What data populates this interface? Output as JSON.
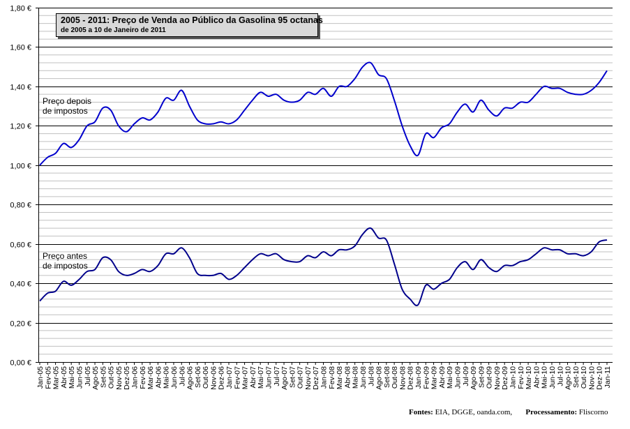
{
  "chart_data": {
    "type": "line",
    "title": "2005 - 2011: Preço de Venda ao Público da Gasolina 95 octanas",
    "subtitle": "de 2005 a 10 de Janeiro de 2011",
    "ylim": [
      0,
      1.8
    ],
    "y_ticks": [
      "0,00 €",
      "0,20 €",
      "0,40 €",
      "0,60 €",
      "0,80 €",
      "1,00 €",
      "1,20 €",
      "1,40 €",
      "1,60 €",
      "1,80 €"
    ],
    "y_tick_values": [
      0,
      0.2,
      0.4,
      0.6,
      0.8,
      1.0,
      1.2,
      1.4,
      1.6,
      1.8
    ],
    "grid": true,
    "x_ticks": [
      "Jan-05",
      "Fev-05",
      "Mar-05",
      "Abr-05",
      "Mai-05",
      "Jun-05",
      "Jul-05",
      "Ago-05",
      "Set-05",
      "Out-05",
      "Nov-05",
      "Dez-05",
      "Jan-06",
      "Fev-06",
      "Mar-06",
      "Abr-06",
      "Mai-06",
      "Jun-06",
      "Jul-06",
      "Ago-06",
      "Set-06",
      "Out-06",
      "Nov-06",
      "Dez-06",
      "Jan-07",
      "Fev-07",
      "Mar-07",
      "Abr-07",
      "Mai-07",
      "Jun-07",
      "Jul-07",
      "Ago-07",
      "Set-07",
      "Out-07",
      "Nov-07",
      "Dez-07",
      "Jan-08",
      "Fev-08",
      "Mar-08",
      "Abr-08",
      "Mai-08",
      "Jun-08",
      "Jul-08",
      "Ago-08",
      "Set-08",
      "Out-08",
      "Nov-08",
      "Dez-08",
      "Jan-09",
      "Fev-09",
      "Mar-09",
      "Abr-09",
      "Mai-09",
      "Jun-09",
      "Jul-09",
      "Ago-09",
      "Set-09",
      "Out-09",
      "Nov-09",
      "Dez-09",
      "Jan-10",
      "Fev-10",
      "Mar-10",
      "Abr-10",
      "Mai-10",
      "Jun-10",
      "Jul-10",
      "Ago-10",
      "Set-10",
      "Out-10",
      "Nov-10",
      "Dez-10",
      "Jan-11"
    ],
    "series": [
      {
        "name": "Preço depois de impostos",
        "color": "#0000cc",
        "values": [
          1.0,
          1.04,
          1.06,
          1.11,
          1.09,
          1.13,
          1.2,
          1.22,
          1.29,
          1.28,
          1.2,
          1.17,
          1.21,
          1.24,
          1.23,
          1.27,
          1.34,
          1.33,
          1.38,
          1.3,
          1.23,
          1.21,
          1.21,
          1.22,
          1.21,
          1.23,
          1.28,
          1.33,
          1.37,
          1.35,
          1.36,
          1.33,
          1.32,
          1.33,
          1.37,
          1.36,
          1.39,
          1.35,
          1.4,
          1.4,
          1.44,
          1.5,
          1.52,
          1.46,
          1.44,
          1.33,
          1.2,
          1.1,
          1.05,
          1.16,
          1.14,
          1.19,
          1.21,
          1.27,
          1.31,
          1.27,
          1.33,
          1.28,
          1.25,
          1.29,
          1.29,
          1.32,
          1.32,
          1.36,
          1.4,
          1.39,
          1.39,
          1.37,
          1.36,
          1.36,
          1.38,
          1.42,
          1.48
        ]
      },
      {
        "name": "Preço antes de impostos",
        "color": "#00008b",
        "values": [
          0.31,
          0.35,
          0.36,
          0.41,
          0.39,
          0.42,
          0.46,
          0.47,
          0.53,
          0.52,
          0.46,
          0.44,
          0.45,
          0.47,
          0.46,
          0.49,
          0.55,
          0.55,
          0.58,
          0.53,
          0.45,
          0.44,
          0.44,
          0.45,
          0.42,
          0.44,
          0.48,
          0.52,
          0.55,
          0.54,
          0.55,
          0.52,
          0.51,
          0.51,
          0.54,
          0.53,
          0.56,
          0.54,
          0.57,
          0.57,
          0.59,
          0.65,
          0.68,
          0.63,
          0.62,
          0.5,
          0.37,
          0.32,
          0.29,
          0.39,
          0.37,
          0.4,
          0.42,
          0.48,
          0.51,
          0.47,
          0.52,
          0.48,
          0.46,
          0.49,
          0.49,
          0.51,
          0.52,
          0.55,
          0.58,
          0.57,
          0.57,
          0.55,
          0.55,
          0.54,
          0.56,
          0.61,
          0.62
        ]
      }
    ]
  },
  "labels": {
    "after_tax_line1": "Preço depois",
    "after_tax_line2": "de impostos",
    "before_tax_line1": "Preço antes",
    "before_tax_line2": "de impostos"
  },
  "footer": {
    "sources_label": "Fontes:",
    "sources_value": "EIA, DGGE, oanda.com,",
    "processing_label": "Processamento:",
    "processing_value": "Fliscorno"
  }
}
